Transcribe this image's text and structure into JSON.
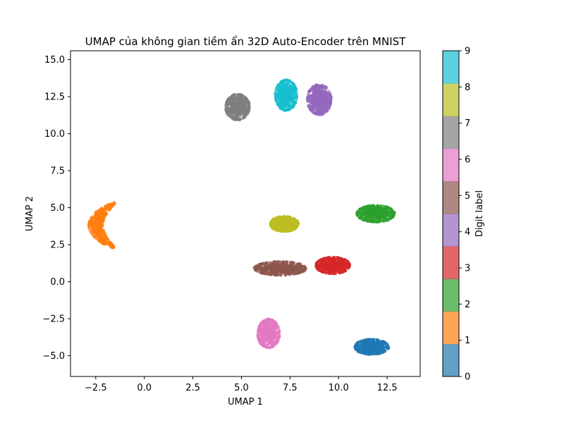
{
  "chart_data": {
    "type": "scatter",
    "title": "UMAP của không gian tiềm ẩn 32D Auto-Encoder trên MNIST",
    "xlabel": "UMAP 1",
    "ylabel": "UMAP 2",
    "xlim": [
      -3.8,
      14.2
    ],
    "ylim": [
      -6.4,
      15.6
    ],
    "xticks": [
      -2.5,
      0.0,
      2.5,
      5.0,
      7.5,
      10.0,
      12.5
    ],
    "xtick_labels": [
      "−2.5",
      "0.0",
      "2.5",
      "5.0",
      "7.5",
      "10.0",
      "12.5"
    ],
    "yticks": [
      -5.0,
      -2.5,
      0.0,
      2.5,
      5.0,
      7.5,
      10.0,
      12.5,
      15.0
    ],
    "ytick_labels": [
      "−5.0",
      "−2.5",
      "0.0",
      "2.5",
      "5.0",
      "7.5",
      "10.0",
      "12.5",
      "15.0"
    ],
    "grid": false,
    "colorbar": {
      "label": "Digit label",
      "min": 0,
      "max": 9,
      "ticks": [
        "0",
        "1",
        "2",
        "3",
        "4",
        "5",
        "6",
        "7",
        "8",
        "9"
      ],
      "colors": [
        "#1f77b4",
        "#ff7f0e",
        "#2ca02c",
        "#d62728",
        "#9467bd",
        "#8c564b",
        "#e377c2",
        "#7f7f7f",
        "#bcbd22",
        "#17becf"
      ],
      "alpha": 0.7
    },
    "clusters": [
      {
        "digit": 0,
        "center": [
          11.7,
          -4.4
        ],
        "spread": [
          0.85,
          0.5
        ]
      },
      {
        "digit": 1,
        "center": [
          -2.2,
          3.8
        ],
        "spread": [
          0.5,
          1.5
        ]
      },
      {
        "digit": 2,
        "center": [
          11.9,
          4.6
        ],
        "spread": [
          0.95,
          0.55
        ]
      },
      {
        "digit": 3,
        "center": [
          9.7,
          1.1
        ],
        "spread": [
          0.85,
          0.55
        ]
      },
      {
        "digit": 4,
        "center": [
          9.0,
          12.3
        ],
        "spread": [
          0.6,
          1.0
        ]
      },
      {
        "digit": 5,
        "center": [
          7.0,
          0.9
        ],
        "spread": [
          1.3,
          0.45
        ]
      },
      {
        "digit": 6,
        "center": [
          6.4,
          -3.5
        ],
        "spread": [
          0.55,
          0.95
        ]
      },
      {
        "digit": 7,
        "center": [
          4.8,
          11.8
        ],
        "spread": [
          0.6,
          0.85
        ]
      },
      {
        "digit": 8,
        "center": [
          7.2,
          3.9
        ],
        "spread": [
          0.7,
          0.5
        ]
      },
      {
        "digit": 9,
        "center": [
          7.3,
          12.6
        ],
        "spread": [
          0.55,
          1.0
        ]
      }
    ]
  }
}
